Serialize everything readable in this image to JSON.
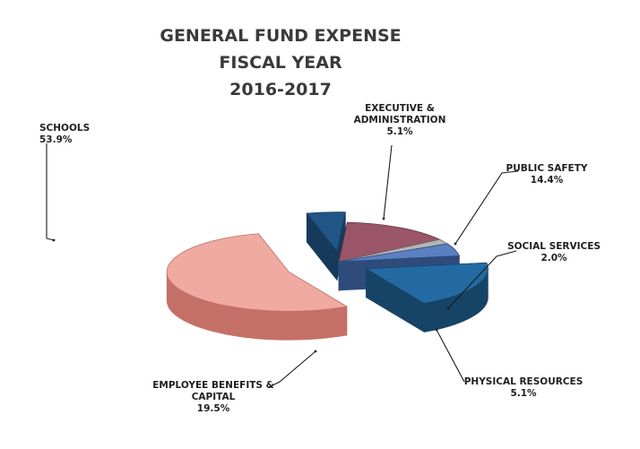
{
  "chart_data": {
    "type": "pie",
    "title": [
      "GENERAL FUND EXPENSE",
      "FISCAL YEAR",
      "2016-2017"
    ],
    "slices": [
      {
        "name_lines": [
          "SCHOOLS"
        ],
        "value": 53.9,
        "value_label": "53.9%",
        "color": "#e8948a",
        "color_top": "#efaaa1",
        "color_side": "#c47068",
        "exploded": true
      },
      {
        "name_lines": [
          "EXECUTIVE &",
          "ADMINISTRATION"
        ],
        "value": 5.1,
        "value_label": "5.1%",
        "color": "#1f4e79",
        "color_top": "#205586",
        "color_side": "#163a5c",
        "exploded": true
      },
      {
        "name_lines": [
          "PUBLIC SAFETY"
        ],
        "value": 14.4,
        "value_label": "14.4%",
        "color": "#8a4a5e",
        "color_top": "#9a5569",
        "color_side": "#5f3140",
        "exploded": false
      },
      {
        "name_lines": [
          "SOCIAL SERVICES"
        ],
        "value": 2.0,
        "value_label": "2.0%",
        "color": "#8a8a8a",
        "color_top": "#b5b5b5",
        "color_side": "#6a6a6a",
        "exploded": false
      },
      {
        "name_lines": [
          "PHYSICAL RESOURCES"
        ],
        "value": 5.1,
        "value_label": "5.1%",
        "color": "#4a6fb0",
        "color_top": "#5a80c2",
        "color_side": "#2f4b7c",
        "exploded": false
      },
      {
        "name_lines": [
          "EMPLOYEE BENEFITS &",
          "CAPITAL"
        ],
        "value": 19.5,
        "value_label": "19.5%",
        "color": "#1d5a8c",
        "color_top": "#236aa3",
        "color_side": "#164466",
        "exploded": true
      }
    ],
    "legend": "none",
    "view": "3d-tilted"
  }
}
